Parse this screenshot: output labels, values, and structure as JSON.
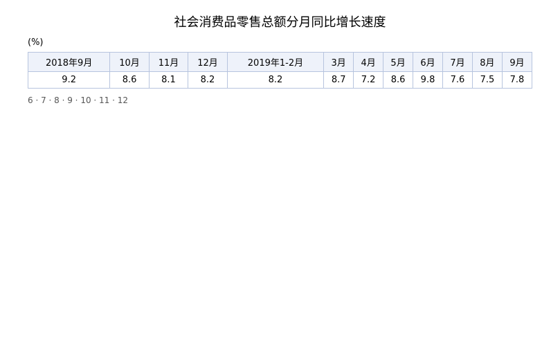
{
  "chart_data": {
    "type": "line",
    "title": "社会消费品零售总额分月同比增长速度",
    "yunit": "(%)",
    "categories": [
      "2018年9月",
      "10月",
      "11月",
      "12月",
      "2019年1-2月",
      "3月",
      "4月",
      "5月",
      "6月",
      "7月",
      "8月",
      "9月"
    ],
    "values": [
      9.2,
      8.6,
      8.1,
      8.2,
      8.2,
      8.7,
      7.2,
      8.6,
      9.8,
      7.6,
      7.5,
      7.8
    ],
    "data_labels": [
      "9.2",
      "8.6",
      "8.1",
      "8.2",
      "8.2",
      "8.7",
      "7.2",
      "8.6",
      "9.8",
      "7.6",
      "7.5",
      "7.8"
    ],
    "ylim": [
      6,
      12
    ],
    "yticks": [
      "6",
      "7",
      "8",
      "9",
      "10",
      "11",
      "12"
    ],
    "legend": "none",
    "grid": false,
    "line_color": "#2e75d6"
  }
}
